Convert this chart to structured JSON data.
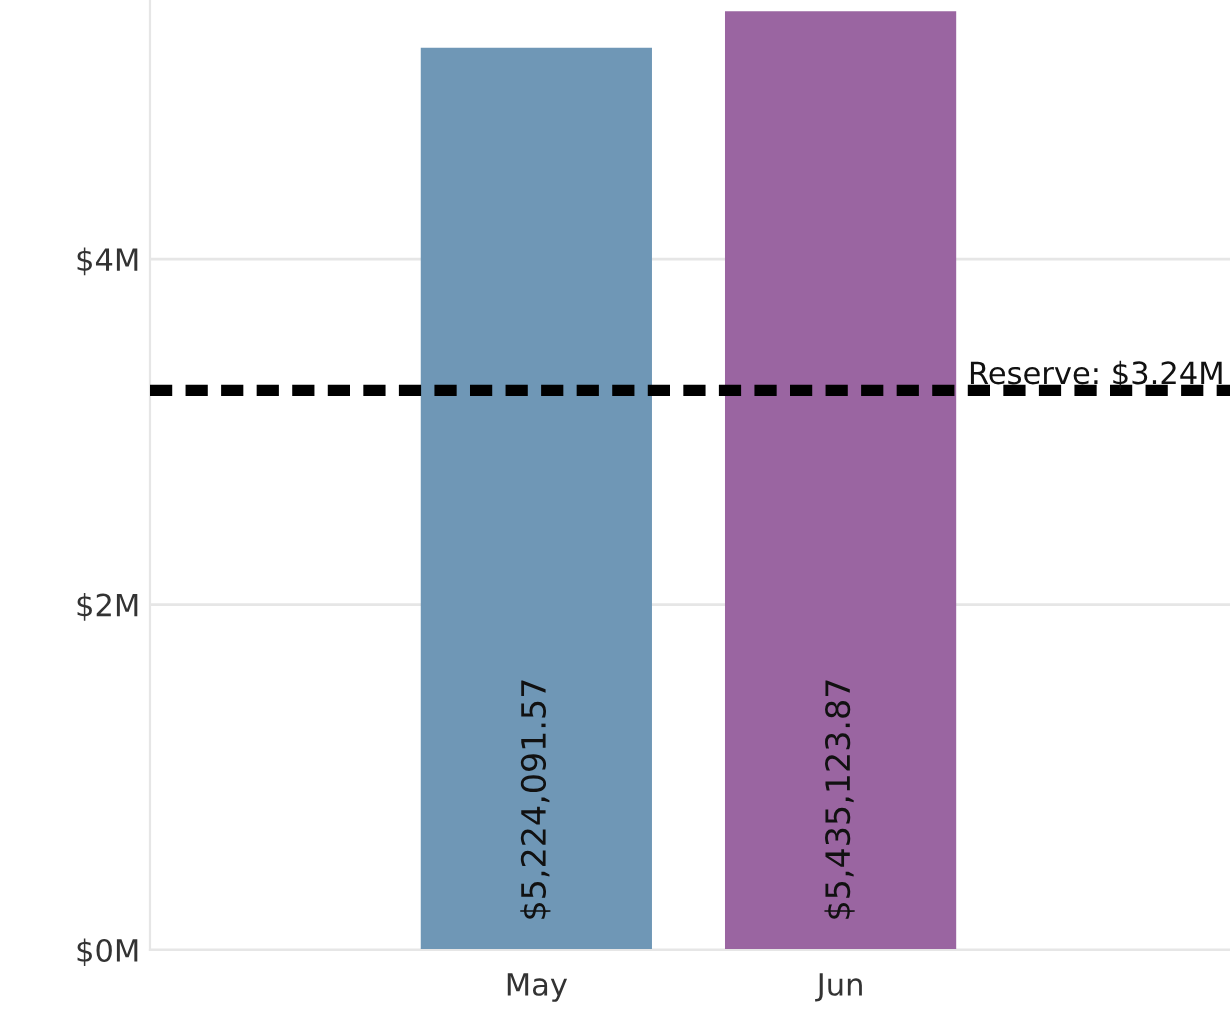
{
  "chart_data": {
    "type": "bar",
    "categories": [
      "May",
      "Jun"
    ],
    "values": [
      5224091.57,
      5435123.87
    ],
    "colors": [
      "#6f97b6",
      "#9a65a1"
    ],
    "value_labels": [
      "$5,224,091.57",
      "$5,435,123.87"
    ],
    "ylim": [
      0,
      5500000
    ],
    "yticks": [
      {
        "value": 0,
        "label": "$0M"
      },
      {
        "value": 2000000,
        "label": "$2M"
      },
      {
        "value": 4000000,
        "label": "$4M"
      }
    ],
    "grid": "y",
    "ref_lines": [
      {
        "axis": "y",
        "value": 3240000,
        "label": "Reserve: $3.24M",
        "color": "#000000",
        "line_style": "dashed"
      }
    ]
  }
}
